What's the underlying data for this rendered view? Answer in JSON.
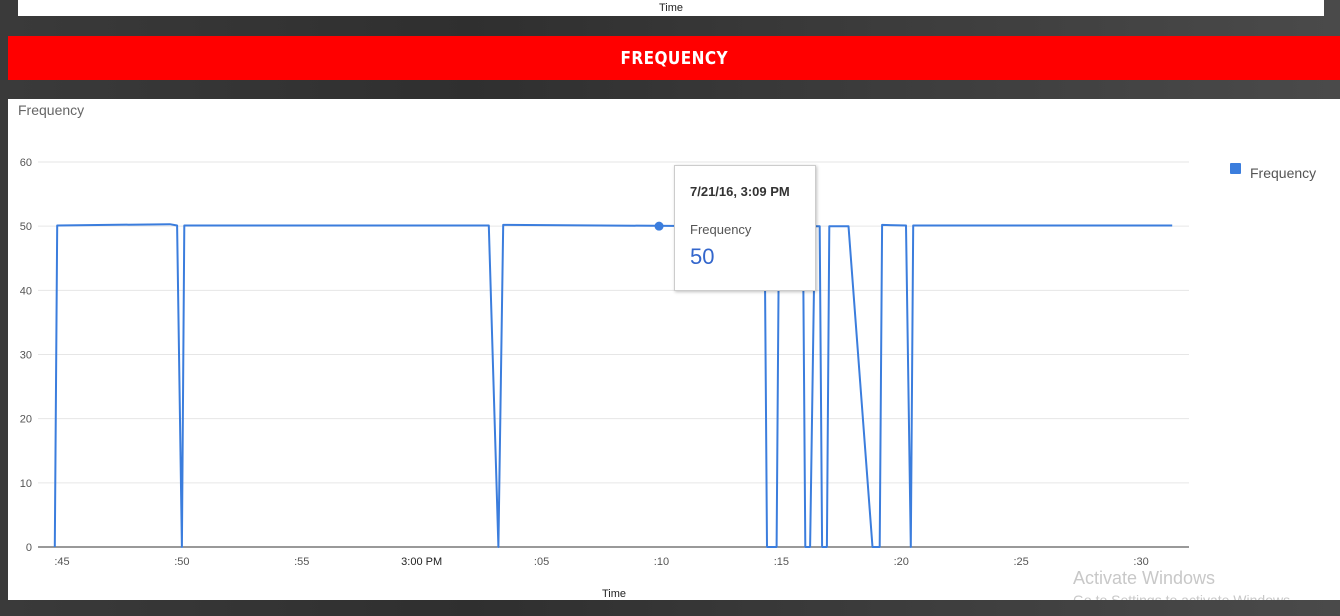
{
  "previous_chart": {
    "xlabel": "Time"
  },
  "banner": {
    "title": "FREQUENCY"
  },
  "chart_data": {
    "type": "line",
    "title": "Frequency",
    "xlabel": "Time",
    "ylabel": "",
    "ylim": [
      0,
      60
    ],
    "yticks": [
      0,
      10,
      20,
      30,
      40,
      50,
      60
    ],
    "grid": true,
    "legend_position": "right",
    "x_tick_labels": [
      ":45",
      ":50",
      ":55",
      "3:00 PM",
      ":05",
      ":10",
      ":15",
      ":20",
      ":25",
      ":30"
    ],
    "x_tick_minutes": [
      45,
      50,
      55,
      60,
      65,
      70,
      75,
      80,
      85,
      90
    ],
    "series": [
      {
        "name": "Frequency",
        "color": "#3b7ddd",
        "points": [
          [
            44.7,
            0
          ],
          [
            44.8,
            50.1
          ],
          [
            49.5,
            50.3
          ],
          [
            49.8,
            50.1
          ],
          [
            50.0,
            0
          ],
          [
            50.1,
            50.1
          ],
          [
            62.8,
            50.1
          ],
          [
            63.2,
            0
          ],
          [
            63.4,
            50.2
          ],
          [
            72.5,
            50.0
          ],
          [
            74.3,
            50.0
          ],
          [
            74.4,
            0
          ],
          [
            74.8,
            0
          ],
          [
            74.9,
            50.0
          ],
          [
            75.9,
            50.0
          ],
          [
            76.0,
            0
          ],
          [
            76.2,
            0
          ],
          [
            76.4,
            50.0
          ],
          [
            76.6,
            50.0
          ],
          [
            76.7,
            0
          ],
          [
            76.9,
            0
          ],
          [
            77.0,
            50.0
          ],
          [
            77.8,
            50.0
          ],
          [
            78.8,
            0
          ],
          [
            79.1,
            0
          ],
          [
            79.2,
            50.2
          ],
          [
            80.2,
            50.1
          ],
          [
            80.4,
            0
          ],
          [
            80.5,
            50.1
          ],
          [
            91.3,
            50.1
          ]
        ]
      }
    ],
    "highlighted_point": {
      "time": "7/21/16, 3:09 PM",
      "x_minute": 69.9,
      "value": 50
    }
  },
  "tooltip": {
    "date": "7/21/16, 3:09 PM",
    "series": "Frequency",
    "value": "50"
  },
  "watermark": {
    "line1": "Activate Windows",
    "line2": "Go to Settings to activate Windows."
  }
}
